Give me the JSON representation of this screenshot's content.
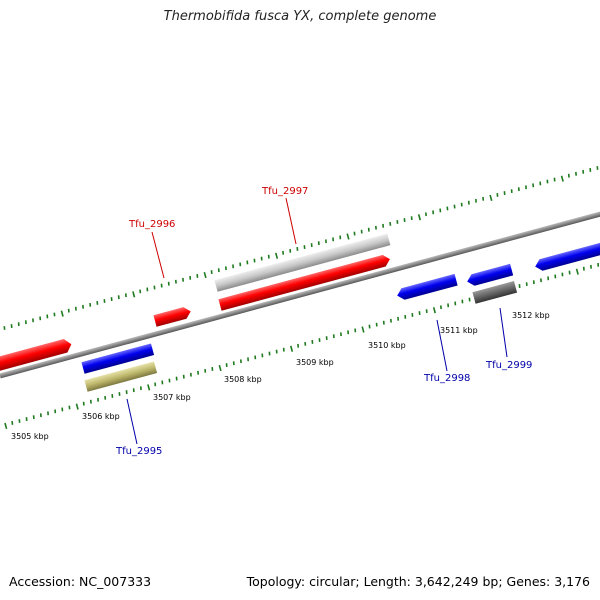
{
  "title": "Thermobifida fusca YX, complete genome",
  "footer": {
    "accession": "Accession: NC_007333",
    "topology": "Topology: circular; Length: 3,642,249 bp; Genes: 3,176"
  },
  "colors": {
    "backbone": "#8a8a8a",
    "tick": "#1f7a1f",
    "red_gene": "#ff0000",
    "blue_gene": "#0000ee",
    "gray_gene": "#c8c8c8",
    "dark_gray_gene": "#666666",
    "olive_gene": "#bdb76b",
    "label_red": "#cc0000",
    "label_blue": "#0000aa"
  },
  "kbp_labels": [
    "3505 kbp",
    "3506 kbp",
    "3507 kbp",
    "3508 kbp",
    "3509 kbp",
    "3510 kbp",
    "3511 kbp",
    "3512 kbp"
  ],
  "gene_labels": [
    "Tfu_2995",
    "Tfu_2996",
    "Tfu_2997",
    "Tfu_2998",
    "Tfu_2999"
  ]
}
